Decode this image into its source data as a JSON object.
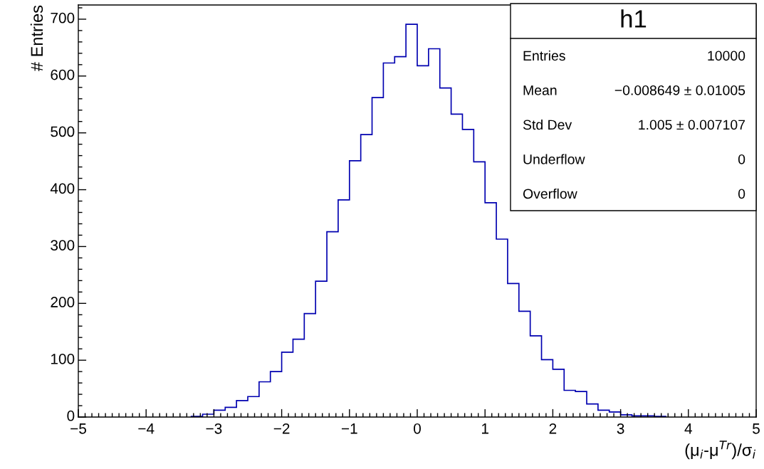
{
  "chart_data": {
    "type": "histogram",
    "title": "h1",
    "xlabel": "(μ$_{i}$-μ$^{Tr}$)/σ$_{i}$",
    "ylabel": "# Entries",
    "color": "#0000b0",
    "bins": [
      -3.3333,
      -3.1667,
      -3,
      -2.8333,
      -2.6667,
      -2.5,
      -2.3333,
      -2.1667,
      -2,
      -1.8333,
      -1.6667,
      -1.5,
      -1.3333,
      -1.1667,
      -1,
      -0.8333,
      -0.6667,
      -0.5,
      -0.3333,
      -0.1667,
      0,
      0.1667,
      0.3333,
      0.5,
      0.6667,
      0.8333,
      1,
      1.1667,
      1.3333,
      1.5,
      1.6667,
      1.8333,
      2,
      2.1667,
      2.3333,
      2.5,
      2.6667,
      2.8333,
      3,
      3.1667,
      3.3333,
      3.5,
      3.6667
    ],
    "values": [
      1,
      5,
      12,
      17,
      29,
      36,
      62,
      80,
      114,
      137,
      182,
      239,
      326,
      382,
      451,
      497,
      562,
      623,
      634,
      691,
      618,
      648,
      579,
      533,
      506,
      449,
      377,
      313,
      235,
      186,
      143,
      101,
      84,
      47,
      45,
      23,
      12,
      9,
      4,
      2,
      2,
      1
    ],
    "xlim": [
      -5,
      5
    ],
    "ylim": [
      0,
      725
    ],
    "xticks": [
      {
        "value": -5,
        "label": "−5"
      },
      {
        "value": -4,
        "label": "−4"
      },
      {
        "value": -3,
        "label": "−3"
      },
      {
        "value": -2,
        "label": "−2"
      },
      {
        "value": -1,
        "label": "−1"
      },
      0,
      1,
      2,
      3,
      4,
      5
    ],
    "yticks": [
      0,
      100,
      200,
      300,
      400,
      500,
      600,
      700
    ],
    "annotations": [
      "Entries",
      "10000",
      "Mean",
      "−0.008649 ± 0.01005",
      "Std Dev",
      "1.005 ± 0.007107",
      "Underflow",
      "0",
      "Overflow",
      "0"
    ]
  }
}
